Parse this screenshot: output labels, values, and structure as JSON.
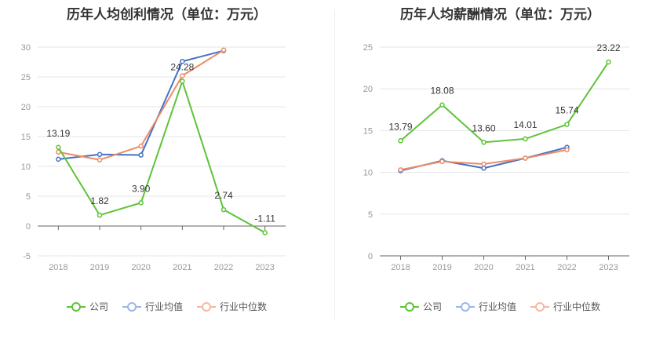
{
  "chart_data": [
    {
      "type": "line",
      "title": "历年人均创利情况（单位：万元）",
      "categories": [
        "2018",
        "2019",
        "2020",
        "2021",
        "2022",
        "2023"
      ],
      "yticks": [
        "30",
        "25",
        "20",
        "15",
        "10",
        "5",
        "0",
        "-5"
      ],
      "ylim": [
        -5,
        30
      ],
      "grid": true,
      "legend_position": "bottom",
      "series": [
        {
          "name": "公司",
          "color": "#5ec438",
          "values": [
            13.19,
            1.82,
            3.9,
            24.28,
            2.74,
            -1.11
          ],
          "labels": [
            "13.19",
            "1.82",
            "3.90",
            "24.28",
            "2.74",
            "-1.11"
          ]
        },
        {
          "name": "行业均值",
          "color": "#4472c4",
          "values": [
            11.2,
            12.0,
            11.9,
            27.6,
            29.4,
            null
          ]
        },
        {
          "name": "行业中位数",
          "color": "#ed8b66",
          "values": [
            12.4,
            11.1,
            13.4,
            25.2,
            29.5,
            null
          ]
        }
      ]
    },
    {
      "type": "line",
      "title": "历年人均薪酬情况（单位：万元）",
      "categories": [
        "2018",
        "2019",
        "2020",
        "2021",
        "2022",
        "2023"
      ],
      "yticks": [
        "25",
        "20",
        "15",
        "10",
        "5",
        "0"
      ],
      "ylim": [
        0,
        25
      ],
      "grid": true,
      "legend_position": "bottom",
      "series": [
        {
          "name": "公司",
          "color": "#5ec438",
          "values": [
            13.79,
            18.08,
            13.6,
            14.01,
            15.74,
            23.22
          ],
          "labels": [
            "13.79",
            "18.08",
            "13.60",
            "14.01",
            "15.74",
            "23.22"
          ]
        },
        {
          "name": "行业均值",
          "color": "#4472c4",
          "values": [
            10.2,
            11.4,
            10.5,
            11.7,
            13.0,
            null
          ]
        },
        {
          "name": "行业中位数",
          "color": "#ed8b66",
          "values": [
            10.3,
            11.3,
            11.0,
            11.7,
            12.7,
            null
          ]
        }
      ]
    }
  ],
  "legend": {
    "company": "公司",
    "industry_avg": "行业均值",
    "industry_median": "行业中位数"
  },
  "colors": {
    "company": "#5ec438",
    "industry_avg": "#4472c4",
    "industry_median": "#ed8b66",
    "legend_avg": "#9bb7e8",
    "legend_median": "#f4b9a2"
  }
}
